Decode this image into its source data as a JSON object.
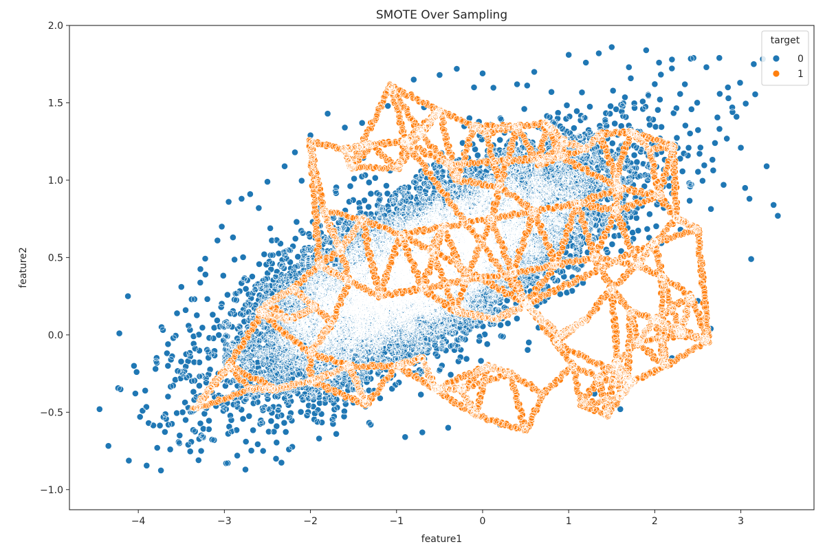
{
  "chart_data": {
    "type": "scatter",
    "title": "SMOTE Over Sampling",
    "xlabel": "feature1",
    "ylabel": "feature2",
    "xlim": [
      -4.8,
      3.85
    ],
    "ylim": [
      -1.13,
      2.0
    ],
    "x_ticks": [
      -4,
      -3,
      -2,
      -1,
      0,
      1,
      2,
      3
    ],
    "x_tick_labels": [
      "−4",
      "−3",
      "−2",
      "−1",
      "0",
      "1",
      "2",
      "3"
    ],
    "y_ticks": [
      -1.0,
      -0.5,
      0.0,
      0.5,
      1.0,
      1.5,
      2.0
    ],
    "y_tick_labels": [
      "−1.0",
      "−0.5",
      "0.0",
      "0.5",
      "1.0",
      "1.5",
      "2.0"
    ],
    "grid": false,
    "legend": {
      "title": "target",
      "placement": "top-right",
      "entries": [
        "0",
        "1"
      ]
    },
    "series": [
      {
        "name": "0",
        "color": "#1f77b4",
        "cluster": {
          "center": [
            -0.65,
            0.44
          ],
          "sd_major": 1.05,
          "sd_minor": 0.23,
          "slope": 0.28,
          "approx_points": 14000
        },
        "points": [
          [
            -4.45,
            -0.48
          ],
          [
            -4.22,
            0.01
          ],
          [
            -4.12,
            0.25
          ],
          [
            -4.05,
            -0.2
          ],
          [
            -4.02,
            -0.24
          ],
          [
            -3.98,
            -0.53
          ],
          [
            -3.95,
            -0.49
          ],
          [
            -3.92,
            -0.36
          ],
          [
            -3.88,
            -0.57
          ],
          [
            -3.8,
            -0.22
          ],
          [
            -3.78,
            -0.73
          ],
          [
            -3.73,
            0.05
          ],
          [
            -3.65,
            -0.58
          ],
          [
            -3.62,
            -0.16
          ],
          [
            -3.57,
            -0.29
          ],
          [
            -3.55,
            0.14
          ],
          [
            -3.52,
            -0.65
          ],
          [
            -3.5,
            0.31
          ],
          [
            -3.45,
            -0.55
          ],
          [
            -3.42,
            -0.71
          ],
          [
            -3.38,
            0.23
          ],
          [
            -3.35,
            -0.42
          ],
          [
            -3.3,
            -0.81
          ],
          [
            -3.27,
            -0.75
          ],
          [
            -3.22,
            0.39
          ],
          [
            -3.18,
            -0.61
          ],
          [
            -3.12,
            -0.68
          ],
          [
            -3.08,
            0.61
          ],
          [
            -3.03,
            0.7
          ],
          [
            -2.98,
            -0.83
          ],
          [
            -2.95,
            0.86
          ],
          [
            -2.9,
            0.63
          ],
          [
            -2.85,
            -0.78
          ],
          [
            -2.8,
            0.88
          ],
          [
            -2.75,
            -0.69
          ],
          [
            -2.7,
            0.91
          ],
          [
            -2.6,
            0.82
          ],
          [
            -2.55,
            -0.75
          ],
          [
            -2.5,
            0.99
          ],
          [
            -2.4,
            -0.8
          ],
          [
            -2.3,
            1.09
          ],
          [
            -2.25,
            -0.74
          ],
          [
            -2.18,
            1.18
          ],
          [
            -2.0,
            1.29
          ],
          [
            -1.9,
            -0.67
          ],
          [
            -1.8,
            1.43
          ],
          [
            -1.7,
            -0.64
          ],
          [
            -1.6,
            1.34
          ],
          [
            -1.4,
            1.37
          ],
          [
            -1.3,
            -0.58
          ],
          [
            -1.1,
            1.48
          ],
          [
            -0.9,
            -0.66
          ],
          [
            -0.8,
            1.65
          ],
          [
            -0.7,
            -0.63
          ],
          [
            -0.5,
            1.68
          ],
          [
            -0.4,
            -0.6
          ],
          [
            -0.3,
            1.72
          ],
          [
            -0.1,
            1.6
          ],
          [
            0.0,
            1.69
          ],
          [
            0.2,
            -0.58
          ],
          [
            0.4,
            1.62
          ],
          [
            0.6,
            1.7
          ],
          [
            0.8,
            1.57
          ],
          [
            1.0,
            1.81
          ],
          [
            1.2,
            1.76
          ],
          [
            1.35,
            1.82
          ],
          [
            1.5,
            1.86
          ],
          [
            1.7,
            1.73
          ],
          [
            1.9,
            1.84
          ],
          [
            2.05,
            1.76
          ],
          [
            2.2,
            1.78
          ],
          [
            2.35,
            1.62
          ],
          [
            2.45,
            1.79
          ],
          [
            2.6,
            1.73
          ],
          [
            2.75,
            1.79
          ],
          [
            2.85,
            1.6
          ],
          [
            2.95,
            1.41
          ],
          [
            3.0,
            1.21
          ],
          [
            3.05,
            0.95
          ],
          [
            3.1,
            0.88
          ],
          [
            3.12,
            0.49
          ],
          [
            3.15,
            1.75
          ],
          [
            3.3,
            1.09
          ],
          [
            3.38,
            0.84
          ],
          [
            3.43,
            0.77
          ],
          [
            2.5,
            0.22
          ],
          [
            2.65,
            0.04
          ],
          [
            2.3,
            0.68
          ],
          [
            2.4,
            0.98
          ],
          [
            2.7,
            1.24
          ],
          [
            2.8,
            0.97
          ],
          [
            2.9,
            1.47
          ],
          [
            2.2,
            -0.15
          ],
          [
            1.6,
            -0.48
          ],
          [
            1.3,
            -0.38
          ]
        ]
      },
      {
        "name": "1",
        "color": "#ff7f0e",
        "segment_endpoints": [
          [
            -1.07,
            1.61
          ],
          [
            -1.53,
            1.08
          ],
          [
            -1.6,
            1.2
          ],
          [
            -1.3,
            1.23
          ],
          [
            -0.98,
            1.08
          ],
          [
            -0.72,
            1.3
          ],
          [
            -0.5,
            1.45
          ],
          [
            -0.3,
            1.0
          ],
          [
            -0.1,
            1.35
          ],
          [
            0.05,
            1.3
          ],
          [
            0.2,
            0.96
          ],
          [
            0.4,
            1.35
          ],
          [
            0.65,
            1.1
          ],
          [
            0.74,
            1.37
          ],
          [
            0.95,
            1.25
          ],
          [
            1.2,
            1.2
          ],
          [
            1.35,
            1.3
          ],
          [
            1.55,
            1.02
          ],
          [
            1.72,
            1.31
          ],
          [
            1.95,
            1.2
          ],
          [
            2.05,
            0.9
          ],
          [
            2.22,
            1.22
          ],
          [
            2.25,
            0.75
          ],
          [
            2.5,
            0.68
          ],
          [
            2.62,
            -0.04
          ],
          [
            2.42,
            0.25
          ],
          [
            2.3,
            0.0
          ],
          [
            2.08,
            0.38
          ],
          [
            2.12,
            -0.2
          ],
          [
            2.0,
            0.1
          ],
          [
            1.8,
            -0.05
          ],
          [
            1.72,
            0.15
          ],
          [
            1.68,
            -0.32
          ],
          [
            1.55,
            -0.18
          ],
          [
            1.45,
            -0.52
          ],
          [
            1.35,
            -0.28
          ],
          [
            1.15,
            -0.45
          ],
          [
            1.05,
            -0.2
          ],
          [
            0.7,
            -0.38
          ],
          [
            0.5,
            -0.62
          ],
          [
            0.32,
            -0.25
          ],
          [
            0.05,
            -0.2
          ],
          [
            -0.08,
            -0.52
          ],
          [
            -0.25,
            -0.35
          ],
          [
            -0.55,
            -0.35
          ],
          [
            -0.7,
            -0.15
          ],
          [
            -1.0,
            -0.2
          ],
          [
            -1.35,
            -0.45
          ],
          [
            -1.55,
            -0.2
          ],
          [
            -2.0,
            -0.3
          ],
          [
            -2.4,
            -0.35
          ],
          [
            -2.7,
            -0.35
          ],
          [
            -3.35,
            -0.48
          ],
          [
            -2.95,
            -0.2
          ],
          [
            -2.5,
            0.2
          ],
          [
            -2.2,
            0.3
          ],
          [
            -1.95,
            0.18
          ],
          [
            -2.25,
            0.1
          ],
          [
            -2.6,
            0.15
          ],
          [
            -2.0,
            -0.12
          ],
          [
            -1.75,
            0.08
          ],
          [
            -1.55,
            0.35
          ],
          [
            -1.9,
            0.45
          ],
          [
            -2.0,
            1.25
          ],
          [
            -1.85,
            0.8
          ],
          [
            -1.65,
            0.55
          ],
          [
            -1.4,
            0.75
          ],
          [
            -1.2,
            0.25
          ],
          [
            -0.95,
            0.65
          ],
          [
            -0.7,
            0.3
          ],
          [
            -0.45,
            0.7
          ],
          [
            -0.2,
            0.35
          ],
          [
            0.1,
            0.75
          ],
          [
            0.35,
            0.4
          ],
          [
            0.6,
            0.8
          ],
          [
            0.85,
            0.45
          ],
          [
            1.1,
            0.85
          ],
          [
            1.3,
            0.5
          ],
          [
            1.55,
            0.8
          ],
          [
            1.8,
            0.45
          ],
          [
            2.0,
            0.6
          ],
          [
            0.15,
            0.1
          ],
          [
            -0.3,
            0.15
          ],
          [
            -0.6,
            0.55
          ],
          [
            0.5,
            0.2
          ],
          [
            0.9,
            0.0
          ],
          [
            1.2,
            0.1
          ],
          [
            1.5,
            0.3
          ],
          [
            1.6,
            -0.4
          ],
          [
            1.75,
            -0.3
          ],
          [
            0.85,
            -0.05
          ],
          [
            -0.9,
            1.25
          ],
          [
            -0.4,
            1.1
          ],
          [
            0.9,
            1.15
          ],
          [
            1.6,
            0.95
          ]
        ]
      }
    ]
  }
}
